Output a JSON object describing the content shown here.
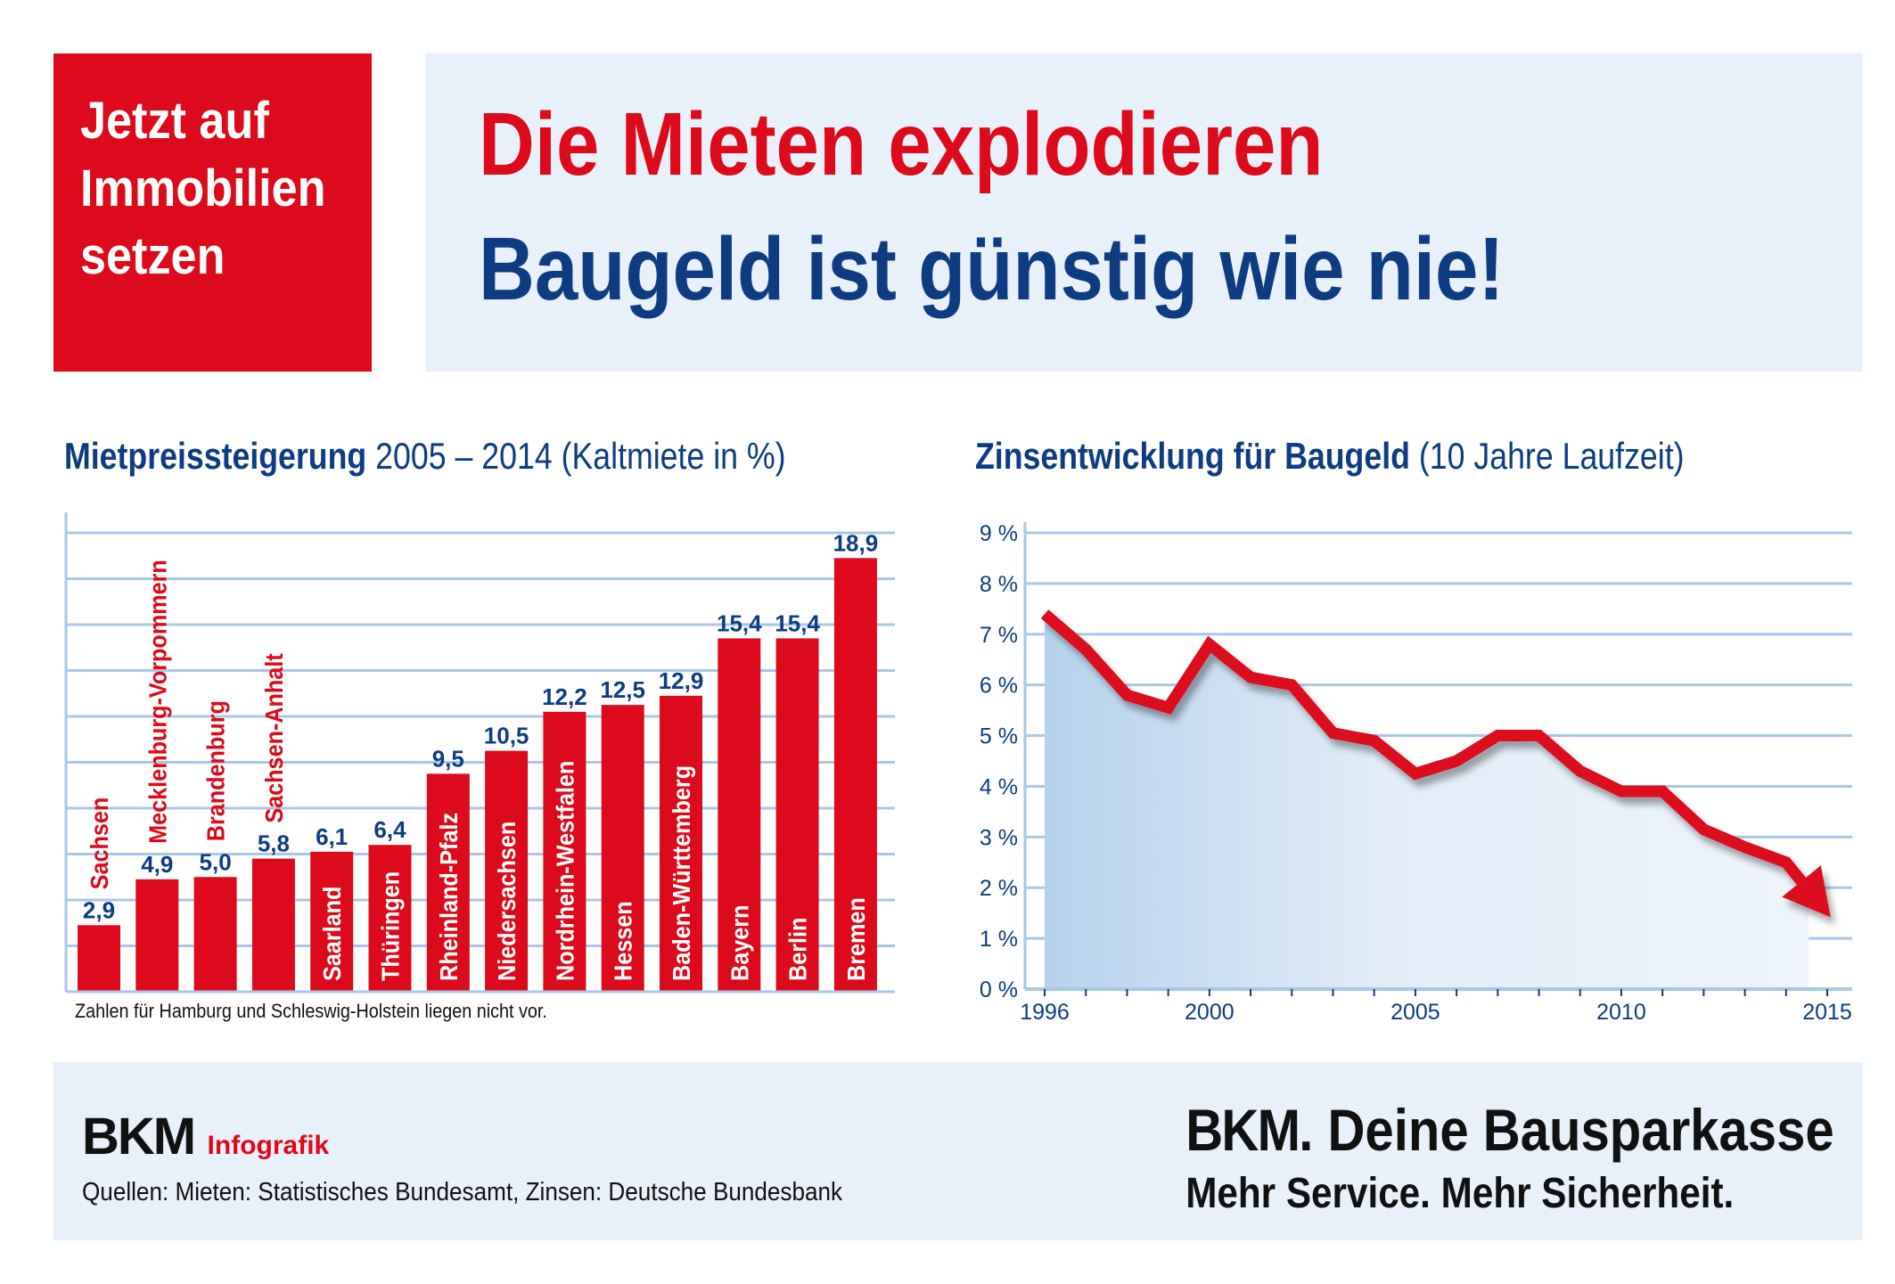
{
  "teaser": {
    "line1": "Jetzt auf",
    "line2": "Immobilien",
    "line3": "setzen"
  },
  "headline": {
    "line1": "Die Mieten explodieren",
    "line2": "Baugeld ist günstig wie nie!"
  },
  "colors": {
    "red": "#dc0a1a",
    "navy": "#0e3c82",
    "panel": "#e8f0fa",
    "grid": "#a8c6e6"
  },
  "rent_chart": {
    "title_bold": "Mietpreissteigerung",
    "title_rest": " 2005 – 2014 (Kaltmiete in %)",
    "footnote": "Zahlen für Hamburg und Schleswig-Holstein liegen nicht vor."
  },
  "rate_chart": {
    "title_bold": "Zinsentwicklung für Baugeld",
    "title_rest": " (10 Jahre Laufzeit)"
  },
  "chart_data": [
    {
      "type": "bar",
      "categories": [
        "Sachsen",
        "Mecklenburg-Vorpommern",
        "Brandenburg",
        "Sachsen-Anhalt",
        "Saarland",
        "Thüringen",
        "Rheinland-Pfalz",
        "Niedersachsen",
        "Nordrhein-Westfalen",
        "Hessen",
        "Baden-Württemberg",
        "Bayern",
        "Berlin",
        "Bremen"
      ],
      "values": [
        2.9,
        4.9,
        5.0,
        5.8,
        6.1,
        6.4,
        9.5,
        10.5,
        12.2,
        12.5,
        12.9,
        15.4,
        15.4,
        18.9
      ],
      "value_labels": [
        "2,9",
        "4,9",
        "5,0",
        "5,8",
        "6,1",
        "6,4",
        "9,5",
        "10,5",
        "12,2",
        "12,5",
        "12,9",
        "15,4",
        "15,4",
        "18,9"
      ],
      "ylim": [
        0,
        20
      ],
      "grid": true,
      "xlabel": "",
      "ylabel": ""
    },
    {
      "type": "line",
      "x": [
        1996,
        1997,
        1998,
        1999,
        2000,
        2001,
        2002,
        2003,
        2004,
        2005,
        2006,
        2007,
        2008,
        2009,
        2010,
        2011,
        2012,
        2013,
        2014,
        2015
      ],
      "y": [
        7.4,
        6.7,
        5.8,
        5.55,
        6.8,
        6.15,
        6.0,
        5.05,
        4.9,
        4.25,
        4.5,
        5.0,
        5.0,
        4.3,
        3.9,
        3.9,
        3.15,
        2.8,
        2.5,
        1.5
      ],
      "xticks": [
        "1996",
        "2000",
        "2005",
        "2010",
        "2015"
      ],
      "yticks": [
        "0 %",
        "1 %",
        "2 %",
        "3 %",
        "4 %",
        "5 %",
        "6 %",
        "7 %",
        "8 %",
        "9 %"
      ],
      "ylim": [
        0,
        9
      ],
      "xlim": [
        1996,
        2015
      ],
      "grid": true,
      "xlabel": "",
      "ylabel": ""
    }
  ],
  "footer": {
    "logo_left": "BKM",
    "infografik": "Infografik",
    "sources": "Quellen: Mieten: Statistisches Bundesamt, Zinsen: Deutsche Bundesbank",
    "brand_logo": "BKM",
    "brand_claim": ". Deine Bausparkasse",
    "slogan": "Mehr Service. Mehr Sicherheit."
  }
}
